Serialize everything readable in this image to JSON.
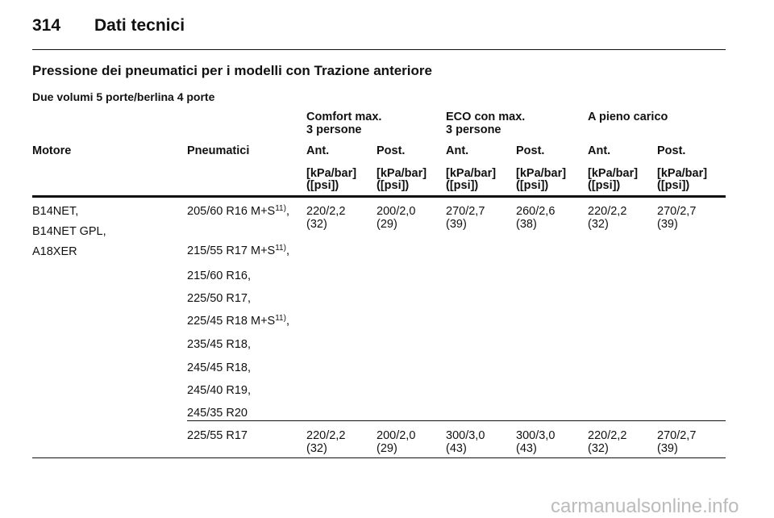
{
  "header": {
    "page": "314",
    "title": "Dati tecnici"
  },
  "section_title": "Pressione dei pneumatici per i modelli con Trazione anteriore",
  "subtitle": "Due volumi 5 porte/berlina 4 porte",
  "table": {
    "groups": [
      [
        "Comfort max.",
        "3 persone"
      ],
      [
        "ECO con max.",
        "3 persone"
      ],
      [
        "A pieno carico"
      ]
    ],
    "columns": [
      "Motore",
      "Pneumatici",
      "Ant.",
      "Post.",
      "Ant.",
      "Post.",
      "Ant.",
      "Post."
    ],
    "units": [
      [
        "[kPa/bar]",
        "([psi])"
      ],
      [
        "[kPa/bar]",
        "([psi])"
      ],
      [
        "[kPa/bar]",
        "([psi])"
      ],
      [
        "[kPa/bar]",
        "([psi])"
      ],
      [
        "[kPa/bar]",
        "([psi])"
      ],
      [
        "[kPa/bar]",
        "([psi])"
      ]
    ],
    "rows": [
      {
        "engines": [
          "B14NET,",
          "B14NET GPL,",
          "A18XER"
        ],
        "tires": [
          {
            "text": "205/60 R16 M+S",
            "note": "11)",
            "after": ","
          },
          {
            "text": "215/55 R17 M+S",
            "note": "11)",
            "after": ","
          },
          {
            "text": "215/60 R16,"
          },
          {
            "text": "225/50 R17,"
          },
          {
            "text": "225/45 R18 M+S",
            "note": "11)",
            "after": ","
          },
          {
            "text": "235/45 R18,"
          },
          {
            "text": "245/45 R18,"
          },
          {
            "text": "245/40 R19,"
          },
          {
            "text": "245/35 R20"
          }
        ],
        "values": [
          [
            "220/2,2",
            "(32)"
          ],
          [
            "200/2,0",
            "(29)"
          ],
          [
            "270/2,7",
            "(39)"
          ],
          [
            "260/2,6",
            "(38)"
          ],
          [
            "220/2,2",
            "(32)"
          ],
          [
            "270/2,7",
            "(39)"
          ]
        ]
      },
      {
        "tires": [
          {
            "text": "225/55 R17"
          }
        ],
        "values": [
          [
            "220/2,2",
            "(32)"
          ],
          [
            "200/2,0",
            "(29)"
          ],
          [
            "300/3,0",
            "(43)"
          ],
          [
            "300/3,0",
            "(43)"
          ],
          [
            "220/2,2",
            "(32)"
          ],
          [
            "270/2,7",
            "(39)"
          ]
        ]
      }
    ]
  },
  "watermark": "carmanualsonline.info"
}
